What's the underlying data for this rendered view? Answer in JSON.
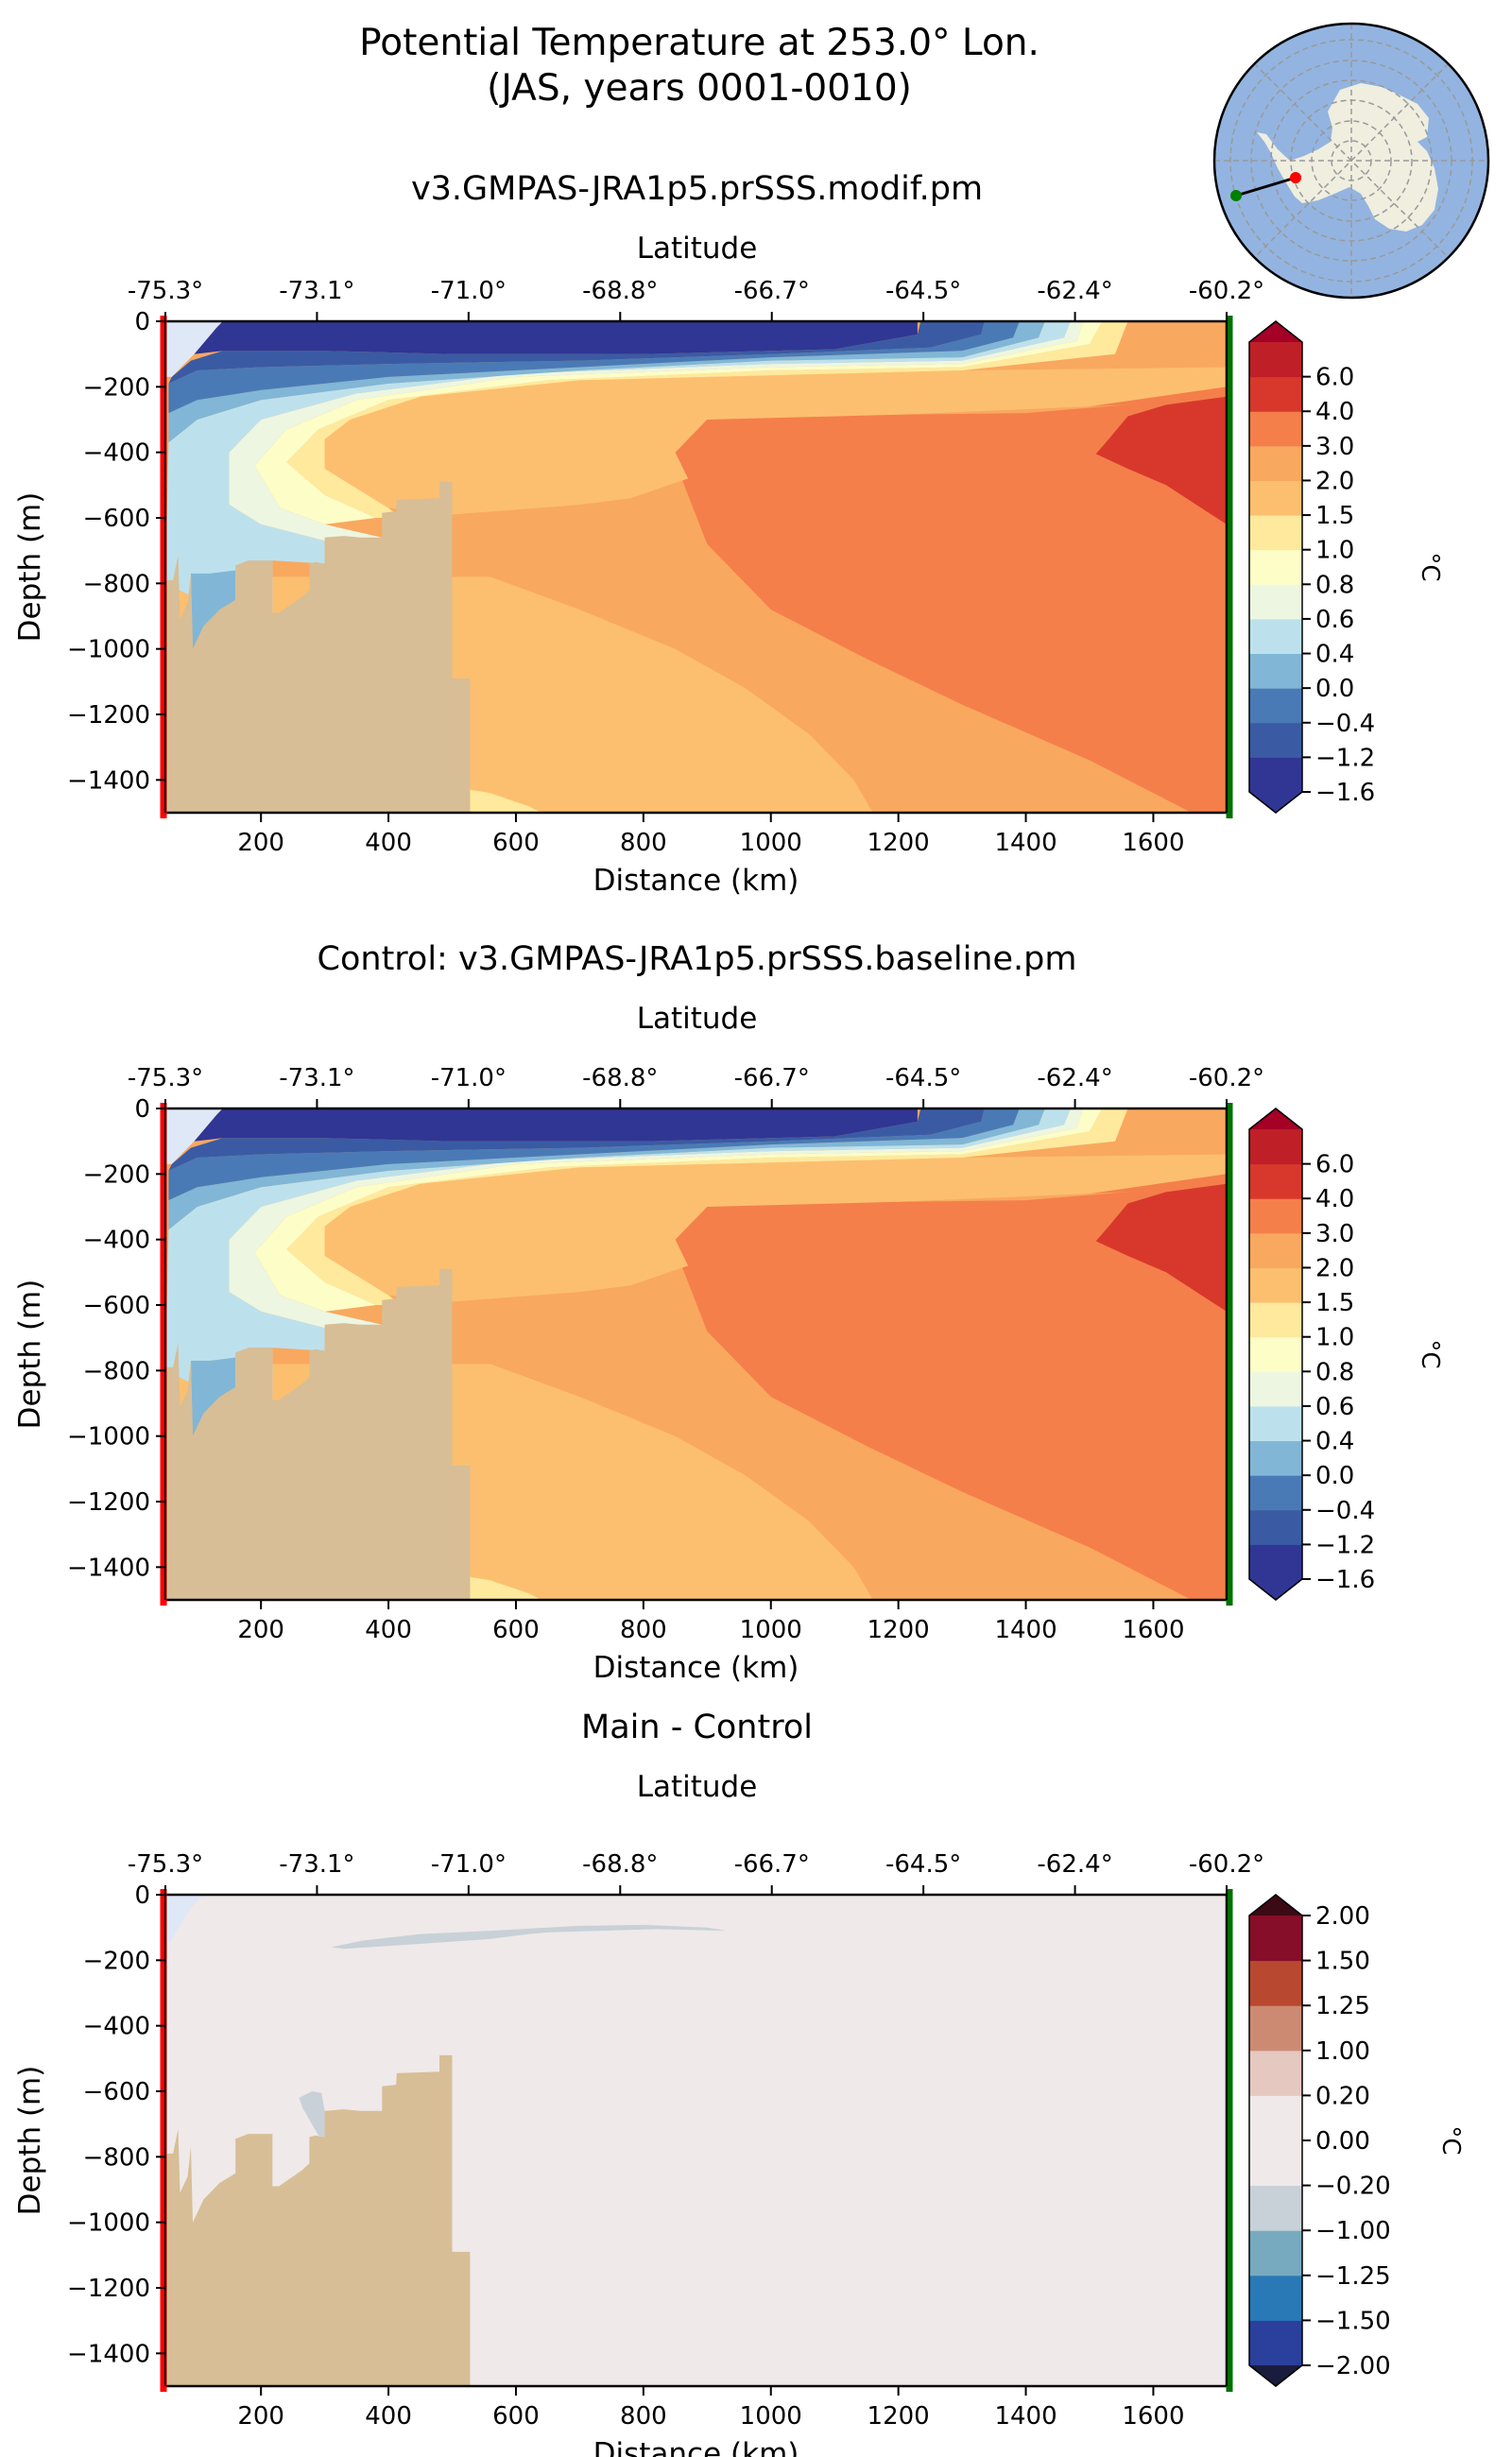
{
  "figure": {
    "title_line1": "Potential Temperature at 253.0° Lon.",
    "title_line2": "(JAS, years 0001-0010)"
  },
  "inset_map": {
    "description": "South polar stereographic map of Antarctica with transect line",
    "ocean_color": "#93b4e0",
    "land_color": "#efeedf",
    "start_marker_color": "#ff0000",
    "end_marker_color": "#008000"
  },
  "colors": {
    "bathymetry": "#d7be96",
    "start_line": "#ff0000",
    "end_line": "#007000"
  },
  "chart_data": [
    {
      "type": "heatmap",
      "subtype": "contourf-section",
      "title": "v3.GMPAS-JRA1p5.prSSS.modif.pm",
      "xlabel": "Distance (km)",
      "ylabel": "Depth (m)",
      "top_xlabel": "Latitude",
      "xlim": [
        50,
        1715
      ],
      "ylim": [
        -1500,
        0
      ],
      "xticks": [
        200,
        400,
        600,
        800,
        1000,
        1200,
        1400,
        1600
      ],
      "xtick_labels": [
        "200",
        "400",
        "600",
        "800",
        "1000",
        "1200",
        "1400",
        "1600"
      ],
      "yticks": [
        0,
        -200,
        -400,
        -600,
        -800,
        -1000,
        -1200,
        -1400
      ],
      "ytick_labels": [
        "0",
        "−200",
        "−400",
        "−600",
        "−800",
        "−1000",
        "−1200",
        "−1400"
      ],
      "top_tick_labels": [
        "-75.3°",
        "-73.1°",
        "-71.0°",
        "-68.8°",
        "-66.7°",
        "-64.5°",
        "-62.4°",
        "-60.2°"
      ],
      "colorbar": {
        "label": "°C",
        "levels": [
          -1.6,
          -1.2,
          -0.4,
          0.0,
          0.4,
          0.6,
          0.8,
          1.0,
          1.5,
          2.0,
          3.0,
          4.0,
          6.0
        ],
        "tick_labels": [
          "−1.6",
          "−1.2",
          "−0.4",
          "0.0",
          "0.4",
          "0.6",
          "0.8",
          "1.0",
          "1.5",
          "2.0",
          "3.0",
          "4.0",
          "6.0"
        ],
        "colors": [
          "#313695",
          "#3a5ba4",
          "#4a7ab6",
          "#81b6d6",
          "#bde1ec",
          "#edf6e1",
          "#fcfdc7",
          "#fee99d",
          "#fcbf6f",
          "#f9a85f",
          "#f47f4b",
          "#d8382b",
          "#bf1f27"
        ],
        "extend_low_color": "#303693",
        "extend_high_color": "#a50026"
      },
      "regions": [
        {
          "value_band": "below -1.6",
          "desc": "thin surface layer 0 to ~-100 m, 80-1200 km"
        },
        {
          "value_band": "3.0 to 4.0",
          "desc": "core of warm water ~-200 to -620 m near 1500-1715 km"
        },
        {
          "value_band": "2.0 to 3.0",
          "desc": "wedge from ~850 km at -400 m descending to 1715 km at -1500 m"
        }
      ]
    },
    {
      "type": "heatmap",
      "subtype": "contourf-section",
      "title": "Control: v3.GMPAS-JRA1p5.prSSS.baseline.pm",
      "xlabel": "Distance (km)",
      "ylabel": "Depth (m)",
      "top_xlabel": "Latitude",
      "xlim": [
        50,
        1715
      ],
      "ylim": [
        -1500,
        0
      ],
      "xticks": [
        200,
        400,
        600,
        800,
        1000,
        1200,
        1400,
        1600
      ],
      "xtick_labels": [
        "200",
        "400",
        "600",
        "800",
        "1000",
        "1200",
        "1400",
        "1600"
      ],
      "yticks": [
        0,
        -200,
        -400,
        -600,
        -800,
        -1000,
        -1200,
        -1400
      ],
      "ytick_labels": [
        "0",
        "−200",
        "−400",
        "−600",
        "−800",
        "−1000",
        "−1200",
        "−1400"
      ],
      "top_tick_labels": [
        "-75.3°",
        "-73.1°",
        "-71.0°",
        "-68.8°",
        "-66.7°",
        "-64.5°",
        "-62.4°",
        "-60.2°"
      ],
      "colorbar": {
        "label": "°C",
        "levels": [
          -1.6,
          -1.2,
          -0.4,
          0.0,
          0.4,
          0.6,
          0.8,
          1.0,
          1.5,
          2.0,
          3.0,
          4.0,
          6.0
        ],
        "tick_labels": [
          "−1.6",
          "−1.2",
          "−0.4",
          "0.0",
          "0.4",
          "0.6",
          "0.8",
          "1.0",
          "1.5",
          "2.0",
          "3.0",
          "4.0",
          "6.0"
        ],
        "colors": [
          "#313695",
          "#3a5ba4",
          "#4a7ab6",
          "#81b6d6",
          "#bde1ec",
          "#edf6e1",
          "#fcfdc7",
          "#fee99d",
          "#fcbf6f",
          "#f9a85f",
          "#f47f4b",
          "#d8382b",
          "#bf1f27"
        ],
        "extend_low_color": "#303693",
        "extend_high_color": "#a50026"
      }
    },
    {
      "type": "heatmap",
      "subtype": "contourf-section",
      "title": "Main - Control",
      "xlabel": "Distance (km)",
      "ylabel": "Depth (m)",
      "top_xlabel": "Latitude",
      "xlim": [
        50,
        1715
      ],
      "ylim": [
        -1500,
        0
      ],
      "xticks": [
        200,
        400,
        600,
        800,
        1000,
        1200,
        1400,
        1600
      ],
      "xtick_labels": [
        "200",
        "400",
        "600",
        "800",
        "1000",
        "1200",
        "1400",
        "1600"
      ],
      "yticks": [
        0,
        -200,
        -400,
        -600,
        -800,
        -1000,
        -1200,
        -1400
      ],
      "ytick_labels": [
        "0",
        "−200",
        "−400",
        "−600",
        "−800",
        "−1000",
        "−1200",
        "−1400"
      ],
      "top_tick_labels": [
        "-75.3°",
        "-73.1°",
        "-71.0°",
        "-68.8°",
        "-66.7°",
        "-64.5°",
        "-62.4°",
        "-60.2°"
      ],
      "colorbar": {
        "label": "°C",
        "levels": [
          -2.0,
          -1.5,
          -1.25,
          -1.0,
          -0.2,
          0.0,
          0.2,
          1.0,
          1.25,
          1.5,
          2.0
        ],
        "tick_labels": [
          "−2.00",
          "−1.50",
          "−1.25",
          "−1.00",
          "−0.20",
          "0.00",
          "0.20",
          "1.00",
          "1.25",
          "1.50",
          "2.00"
        ],
        "colors": [
          "#2b3f9c",
          "#2979b7",
          "#77aabf",
          "#c8d1d7",
          "#efe9e9",
          "#efe9e9",
          "#e5c8c0",
          "#cd8a73",
          "#b94830",
          "#860e28"
        ],
        "extend_low_color": "#1a1c3d",
        "extend_high_color": "#3c0a14"
      },
      "regions": [
        {
          "value_band": "-1.0 to -0.2",
          "desc": "thin lens ~-100 to -170 m, 300-930 km"
        },
        {
          "value_band": "-1.0 to -0.2",
          "desc": "small patch ~-600 to -760 m near 260-300 km"
        }
      ]
    }
  ]
}
